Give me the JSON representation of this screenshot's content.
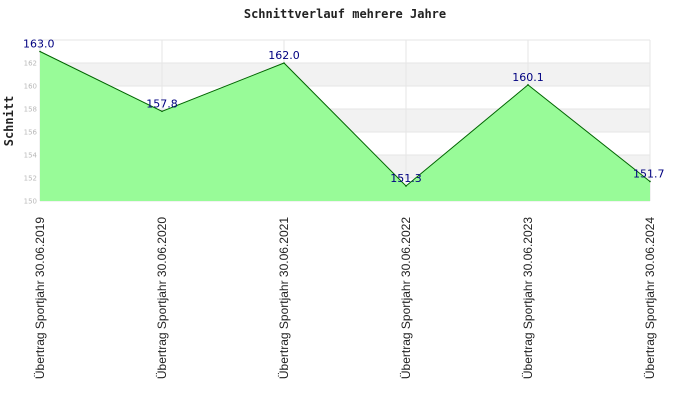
{
  "chart_data": {
    "type": "area",
    "title": "Schnittverlauf mehrere Jahre",
    "xlabel": "",
    "ylabel": "Schnitt",
    "categories": [
      "Übertrag Sportjahr 30.06.2019",
      "Übertrag Sportjahr 30.06.2020",
      "Übertrag Sportjahr 30.06.2021",
      "Übertrag Sportjahr 30.06.2022",
      "Übertrag Sportjahr 30.06.2023",
      "Übertrag Sportjahr 30.06.2024"
    ],
    "values": [
      163.0,
      157.8,
      162.0,
      151.3,
      160.1,
      151.7
    ],
    "value_labels": [
      "163.0",
      "157.8",
      "162.0",
      "151.3",
      "160.1",
      "151.7"
    ],
    "ylim": [
      150,
      164
    ],
    "yticks": [
      150,
      152,
      154,
      156,
      158,
      160,
      162
    ],
    "ytick_labels": [
      "150",
      "152",
      "154",
      "156",
      "158",
      "160",
      "162"
    ],
    "grid": true,
    "colors": {
      "fill": "#98fb98",
      "line": "#006400",
      "band": "#f2f2f2",
      "value_text": "#000080"
    }
  }
}
